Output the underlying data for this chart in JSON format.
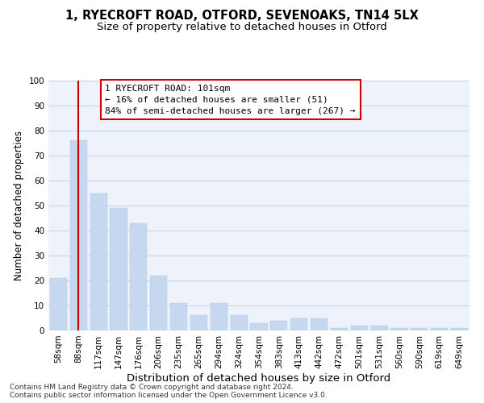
{
  "title1": "1, RYECROFT ROAD, OTFORD, SEVENOAKS, TN14 5LX",
  "title2": "Size of property relative to detached houses in Otford",
  "xlabel": "Distribution of detached houses by size in Otford",
  "ylabel": "Number of detached properties",
  "categories": [
    "58sqm",
    "88sqm",
    "117sqm",
    "147sqm",
    "176sqm",
    "206sqm",
    "235sqm",
    "265sqm",
    "294sqm",
    "324sqm",
    "354sqm",
    "383sqm",
    "413sqm",
    "442sqm",
    "472sqm",
    "501sqm",
    "531sqm",
    "560sqm",
    "590sqm",
    "619sqm",
    "649sqm"
  ],
  "values": [
    21,
    76,
    55,
    49,
    43,
    22,
    11,
    6,
    11,
    6,
    3,
    4,
    5,
    5,
    1,
    2,
    2,
    1,
    1,
    1,
    1
  ],
  "bar_color": "#c5d8f0",
  "bar_edgecolor": "#b0c8e8",
  "vline_x": 1,
  "vline_color": "#cc0000",
  "annotation_text": "1 RYECROFT ROAD: 101sqm\n← 16% of detached houses are smaller (51)\n84% of semi-detached houses are larger (267) →",
  "annotation_box_color": "white",
  "annotation_box_edgecolor": "#cc0000",
  "ylim": [
    0,
    100
  ],
  "yticks": [
    0,
    10,
    20,
    30,
    40,
    50,
    60,
    70,
    80,
    90,
    100
  ],
  "grid_color": "#c8d4e8",
  "background_color": "#eef2fa",
  "footnote": "Contains HM Land Registry data © Crown copyright and database right 2024.\nContains public sector information licensed under the Open Government Licence v3.0.",
  "title1_fontsize": 10.5,
  "title2_fontsize": 9.5,
  "xlabel_fontsize": 9.5,
  "ylabel_fontsize": 8.5,
  "tick_fontsize": 7.5,
  "annotation_fontsize": 8,
  "footnote_fontsize": 6.5
}
